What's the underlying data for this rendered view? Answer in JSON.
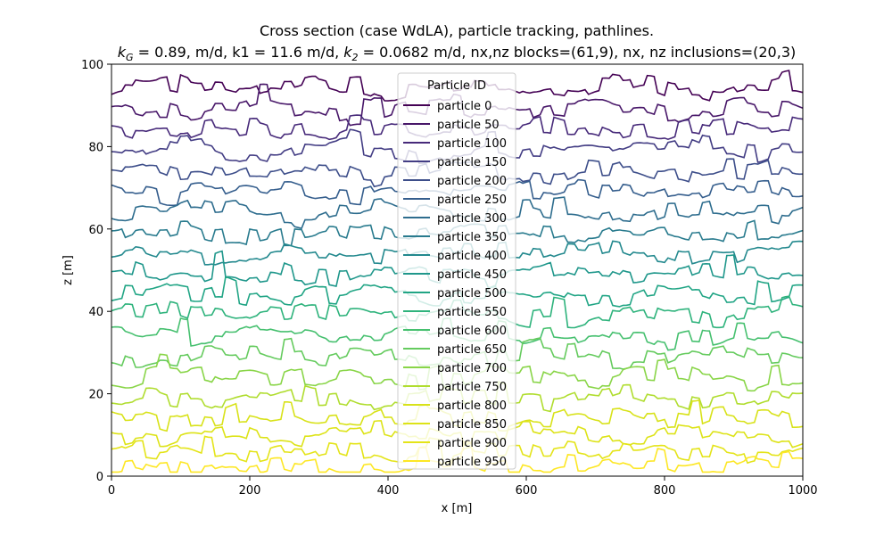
{
  "chart_data": {
    "type": "line",
    "title": "Cross section (case WdLA), particle tracking, pathlines.",
    "subtitle": "k_G = 0.89, m/d, k1 = 11.6 m/d, k_2 = 0.0682 m/d, nx,nz blocks=(61,9), nx, nz inclusions=(20,3)",
    "subtitle_parts": {
      "kG_sym": "k",
      "kG_sub": "G",
      "kG_val": " = 0.89, m/d, ",
      "k1": "k1 = 11.6 m/d, ",
      "k2_sym": "k",
      "k2_sub": "2",
      "k2_val": " = 0.0682 m/d, ",
      "rest": "nx,nz blocks=(61,9), nx, nz inclusions=(20,3)"
    },
    "xlabel": "x [m]",
    "ylabel": "z [m]",
    "xlim": [
      0,
      1000
    ],
    "ylim": [
      0,
      100
    ],
    "xticks": [
      "0",
      "200",
      "400",
      "600",
      "800",
      "1000"
    ],
    "yticks": [
      "0",
      "20",
      "40",
      "60",
      "80",
      "100"
    ],
    "grid": false,
    "legend": {
      "title": "Particle ID",
      "placement": "upper-center"
    },
    "series": [
      {
        "name": "particle 0",
        "color": "#440154",
        "base": 94
      },
      {
        "name": "particle 50",
        "color": "#481769",
        "base": 89
      },
      {
        "name": "particle 100",
        "color": "#472a7a",
        "base": 84
      },
      {
        "name": "particle 150",
        "color": "#433d84",
        "base": 79
      },
      {
        "name": "particle 200",
        "color": "#3d4e8a",
        "base": 74
      },
      {
        "name": "particle 250",
        "color": "#355e8d",
        "base": 69
      },
      {
        "name": "particle 300",
        "color": "#2e6d8e",
        "base": 64
      },
      {
        "name": "particle 350",
        "color": "#297b8e",
        "base": 59
      },
      {
        "name": "particle 400",
        "color": "#23898e",
        "base": 54
      },
      {
        "name": "particle 450",
        "color": "#1f978b",
        "base": 49
      },
      {
        "name": "particle 500",
        "color": "#21a585",
        "base": 44
      },
      {
        "name": "particle 550",
        "color": "#2eb37c",
        "base": 39
      },
      {
        "name": "particle 600",
        "color": "#46c06f",
        "base": 34
      },
      {
        "name": "particle 650",
        "color": "#65cb5e",
        "base": 29
      },
      {
        "name": "particle 700",
        "color": "#89d548",
        "base": 24
      },
      {
        "name": "particle 750",
        "color": "#b0dd2f",
        "base": 19
      },
      {
        "name": "particle 800",
        "color": "#d8e219",
        "base": 14
      },
      {
        "name": "particle 850",
        "color": "#dde318",
        "base": 10
      },
      {
        "name": "particle 900",
        "color": "#e4e419",
        "base": 6
      },
      {
        "name": "particle 950",
        "color": "#fde725",
        "base": 2
      }
    ]
  }
}
